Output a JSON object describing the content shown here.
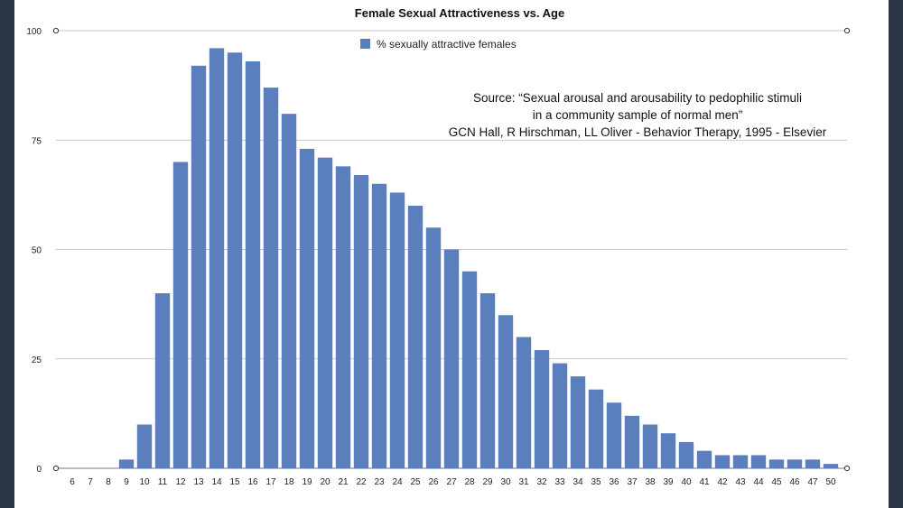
{
  "chart_data": {
    "type": "bar",
    "title": "Female Sexual Attractiveness vs. Age",
    "xlabel": "",
    "ylabel": "",
    "ylim": [
      0,
      100
    ],
    "yticks": [
      "0",
      "25",
      "50",
      "75",
      "100"
    ],
    "grid": true,
    "legend_position": "top-center",
    "categories": [
      "6",
      "7",
      "8",
      "9",
      "10",
      "11",
      "12",
      "13",
      "14",
      "15",
      "16",
      "17",
      "18",
      "19",
      "20",
      "21",
      "22",
      "23",
      "24",
      "25",
      "26",
      "27",
      "28",
      "29",
      "30",
      "31",
      "32",
      "33",
      "34",
      "35",
      "36",
      "37",
      "38",
      "39",
      "40",
      "41",
      "42",
      "43",
      "44",
      "45",
      "46",
      "47",
      "50"
    ],
    "series": [
      {
        "name": "% sexually attractive females",
        "color": "#5b7fbd",
        "values": [
          0,
          0,
          0,
          2,
          10,
          40,
          70,
          92,
          96,
          95,
          93,
          87,
          81,
          73,
          71,
          69,
          67,
          65,
          63,
          60,
          55,
          50,
          45,
          40,
          35,
          30,
          27,
          24,
          21,
          18,
          15,
          12,
          10,
          8,
          6,
          4,
          3,
          3,
          3,
          2,
          2,
          2,
          1
        ]
      }
    ],
    "annotation": {
      "lines": [
        "Source: “Sexual arousal and arousability to pedophilic stimuli",
        "in a community sample of normal men”",
        "GCN Hall, R Hirschman, LL Oliver - Behavior Therapy, 1995 - Elsevier"
      ]
    }
  }
}
